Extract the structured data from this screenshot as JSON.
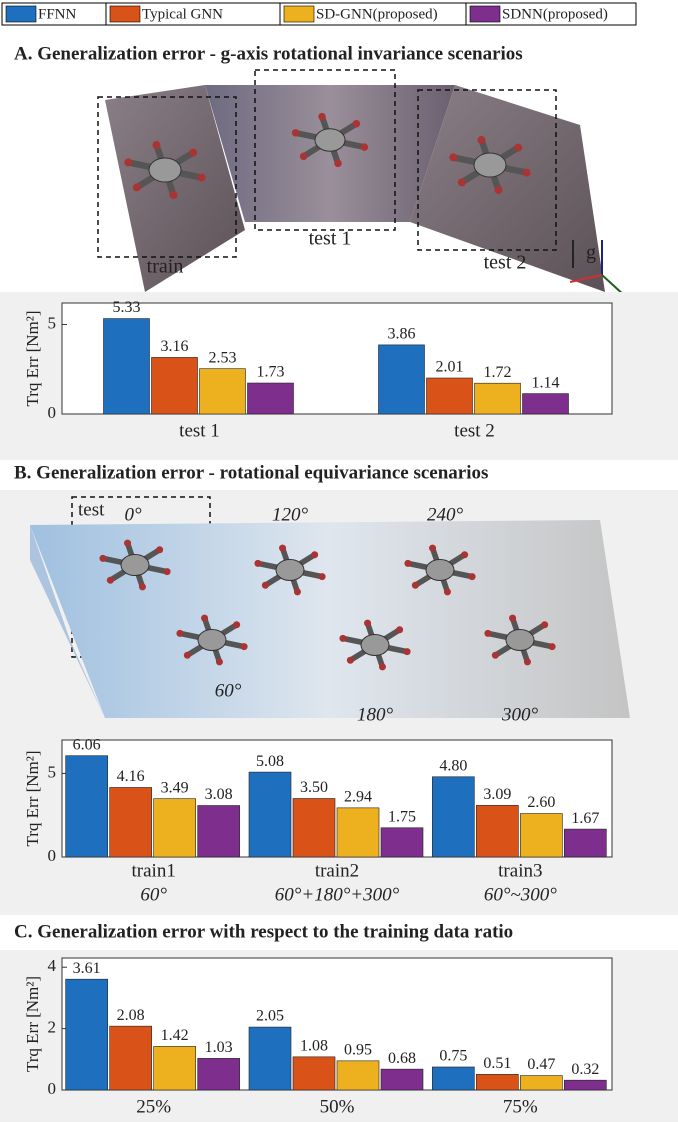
{
  "chart_data": [
    {
      "type": "bar",
      "title": "A.  Generalization error - g-axis rotational invariance scenarios",
      "ylabel": "Trq Err [Nm²]",
      "categories": [
        "test 1",
        "test 2"
      ],
      "series": [
        {
          "name": "FFNN",
          "color": "#1f6fbf",
          "values": [
            5.33,
            3.86
          ]
        },
        {
          "name": "Typical GNN",
          "color": "#d95319",
          "values": [
            3.16,
            2.01
          ]
        },
        {
          "name": "SD-GNN(proposed)",
          "color": "#edb120",
          "values": [
            2.53,
            1.72
          ]
        },
        {
          "name": "SDNN(proposed)",
          "color": "#7e2f8e",
          "values": [
            1.73,
            1.14
          ]
        }
      ],
      "ylim": [
        0,
        6.2
      ],
      "yticks": [
        0,
        5
      ]
    },
    {
      "type": "bar",
      "title": "B. Generalization error -  rotational equivariance scenarios",
      "ylabel": "Trq Err [Nm²]",
      "categories": [
        "train1",
        "train2",
        "train3"
      ],
      "subcategories": [
        "60°",
        "60°+180°+300°",
        "60°~300°"
      ],
      "series": [
        {
          "name": "FFNN",
          "color": "#1f6fbf",
          "values": [
            6.06,
            5.08,
            4.8
          ],
          "value_labels": [
            "6.06",
            "5.08",
            "4.80"
          ]
        },
        {
          "name": "Typical GNN",
          "color": "#d95319",
          "values": [
            4.16,
            3.5,
            3.09
          ],
          "value_labels": [
            "4.16",
            "3.50",
            "3.09"
          ]
        },
        {
          "name": "SD-GNN(proposed)",
          "color": "#edb120",
          "values": [
            3.49,
            2.94,
            2.6
          ],
          "value_labels": [
            "3.49",
            "2.94",
            "2.60"
          ]
        },
        {
          "name": "SDNN(proposed)",
          "color": "#7e2f8e",
          "values": [
            3.08,
            1.75,
            1.67
          ]
        }
      ],
      "ylim": [
        0,
        7
      ],
      "yticks": [
        0,
        5
      ]
    },
    {
      "type": "bar",
      "title": "C. Generalization error with respect to the training data ratio",
      "ylabel": "Trq Err [Nm²]",
      "categories": [
        "25%",
        "50%",
        "75%"
      ],
      "series": [
        {
          "name": "FFNN",
          "color": "#1f6fbf",
          "values": [
            3.61,
            2.05,
            0.75
          ]
        },
        {
          "name": "Typical GNN",
          "color": "#d95319",
          "values": [
            2.08,
            1.08,
            0.51
          ]
        },
        {
          "name": "SD-GNN(proposed)",
          "color": "#edb120",
          "values": [
            1.42,
            0.95,
            0.47
          ]
        },
        {
          "name": "SDNN(proposed)",
          "color": "#7e2f8e",
          "values": [
            1.03,
            0.68,
            0.32
          ]
        }
      ],
      "ylim": [
        0,
        4.3
      ],
      "yticks": [
        0,
        2,
        4
      ]
    }
  ],
  "scenes": {
    "a": {
      "train": "train",
      "test1": "test 1",
      "test2": "test 2",
      "axis": "g"
    },
    "b": {
      "test": "test",
      "angles": [
        "0°",
        "120°",
        "240°",
        "60°",
        "180°",
        "300°"
      ]
    }
  }
}
